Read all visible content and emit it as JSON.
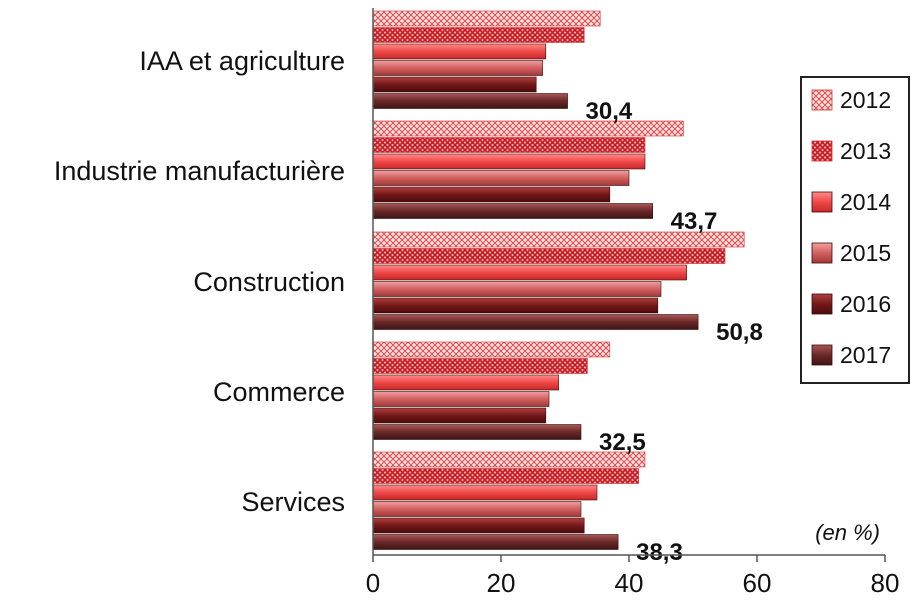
{
  "chart_data": {
    "type": "bar",
    "orientation": "horizontal",
    "title": "",
    "xlabel": "",
    "ylabel": "",
    "unit_note": "(en %)",
    "xlim": [
      0,
      80
    ],
    "x_ticks": [
      0,
      20,
      40,
      60,
      80
    ],
    "grid": false,
    "legend_position": "right",
    "categories": [
      "IAA et agriculture",
      "Industrie manufacturière",
      "Construction",
      "Commerce",
      "Services"
    ],
    "series": [
      {
        "name": "2012",
        "color": "#f4a3a3",
        "pattern": "crosshatch-light",
        "values": [
          35.5,
          48.5,
          58.0,
          37.0,
          42.5
        ]
      },
      {
        "name": "2013",
        "color": "#e0373f",
        "pattern": "crosshatch-dense",
        "values": [
          33.0,
          42.5,
          55.0,
          33.5,
          41.5
        ]
      },
      {
        "name": "2014",
        "color": "#f05050",
        "pattern": "solid",
        "values": [
          27.0,
          42.5,
          49.0,
          29.0,
          35.0
        ]
      },
      {
        "name": "2015",
        "color": "#d86a6a",
        "pattern": "solid",
        "values": [
          26.5,
          40.0,
          45.0,
          27.5,
          32.5
        ]
      },
      {
        "name": "2016",
        "color": "#7a1c1c",
        "pattern": "solid",
        "values": [
          25.5,
          37.0,
          44.5,
          27.0,
          33.0
        ]
      },
      {
        "name": "2017",
        "color": "#6b2a2a",
        "pattern": "solid",
        "values": [
          30.4,
          43.7,
          50.8,
          32.5,
          38.3
        ]
      }
    ],
    "data_labels": [
      {
        "category": "IAA et agriculture",
        "series": "2017",
        "text": "30,4"
      },
      {
        "category": "Industrie manufacturière",
        "series": "2017",
        "text": "43,7"
      },
      {
        "category": "Construction",
        "series": "2017",
        "text": "50,8"
      },
      {
        "category": "Commerce",
        "series": "2017",
        "text": "32,5"
      },
      {
        "category": "Services",
        "series": "2017",
        "text": "38,3"
      }
    ]
  }
}
